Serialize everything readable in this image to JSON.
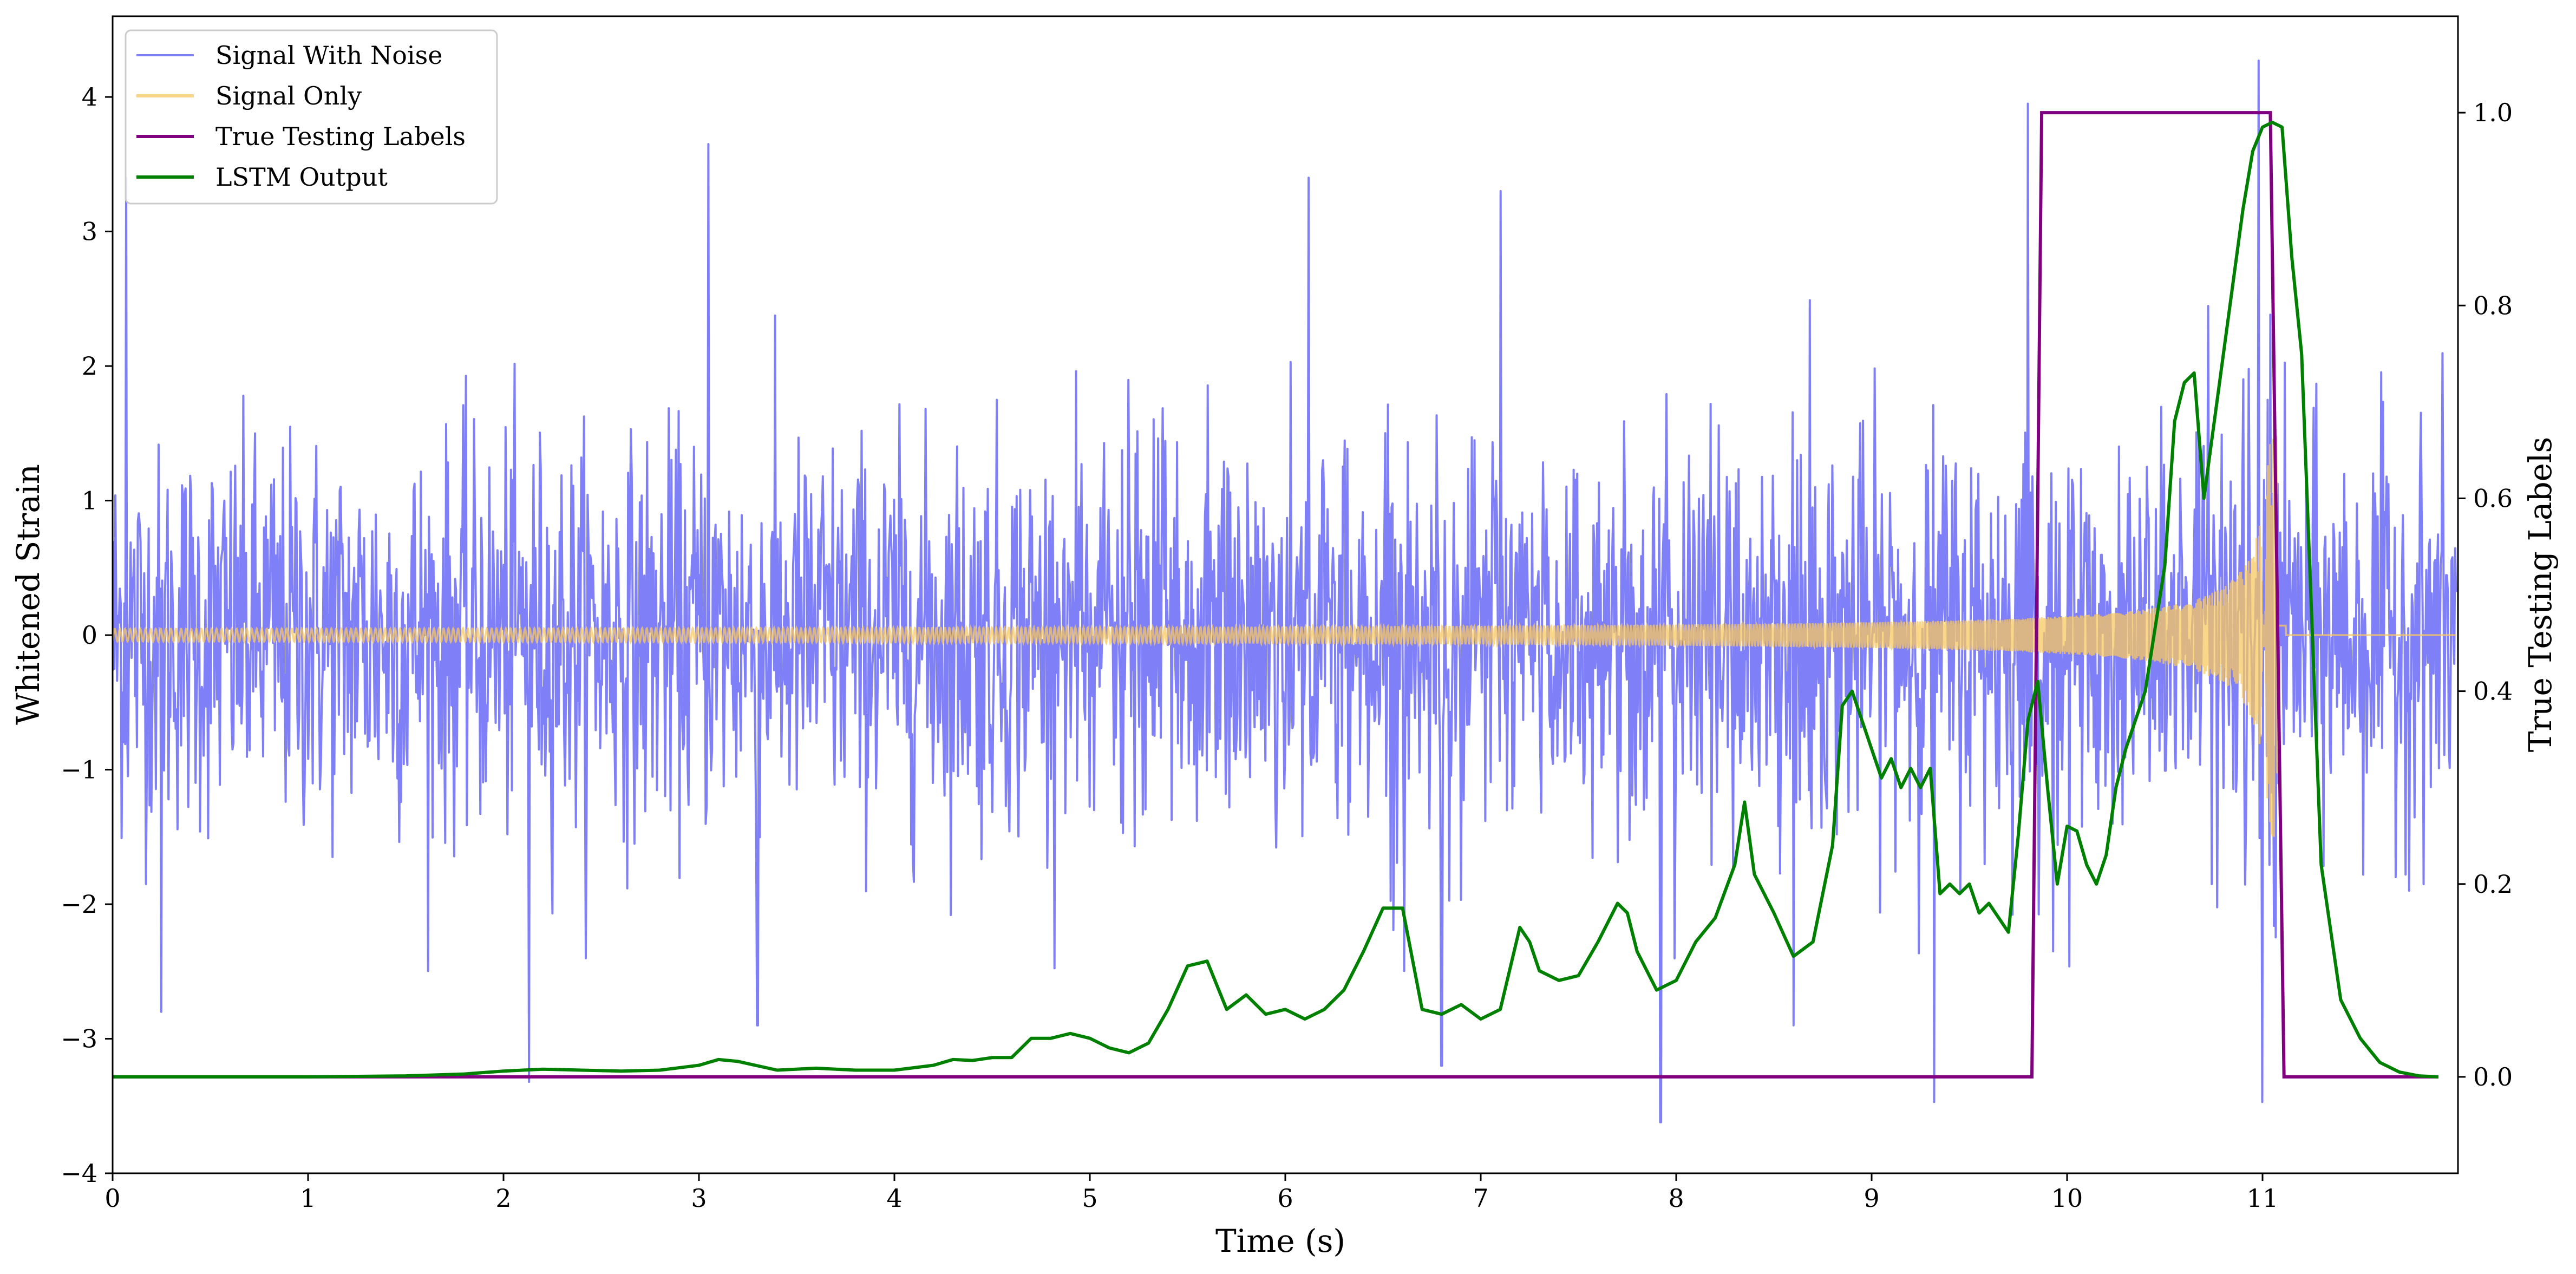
{
  "chart_data": {
    "type": "line",
    "title": "",
    "xlabel": "Time (s)",
    "ylabel": "Whitened Strain",
    "ylabel_right": "True Testing Labels",
    "xlim": [
      0,
      12
    ],
    "ylim": [
      -4,
      4.6
    ],
    "ylim_right": [
      -0.1,
      1.1
    ],
    "x_ticks": [
      0,
      1,
      2,
      3,
      4,
      5,
      6,
      7,
      8,
      9,
      10,
      11
    ],
    "x_tick_labels": [
      "0",
      "1",
      "2",
      "3",
      "4",
      "5",
      "6",
      "7",
      "8",
      "9",
      "10",
      "11"
    ],
    "y_ticks": [
      -4,
      -3,
      -2,
      -1,
      0,
      1,
      2,
      3,
      4
    ],
    "y_tick_labels": [
      "−4",
      "−3",
      "−2",
      "−1",
      "0",
      "1",
      "2",
      "3",
      "4"
    ],
    "y_right_ticks": [
      0.0,
      0.2,
      0.4,
      0.6,
      0.8,
      1.0
    ],
    "y_right_tick_labels": [
      "0.0",
      "0.2",
      "0.4",
      "0.6",
      "0.8",
      "1.0"
    ],
    "legend_position": "top-left",
    "grid": false,
    "series": [
      {
        "name": "Signal With Noise",
        "axis": "left",
        "color": "#7f7ff7",
        "description_values": {
          "noise_std": 0.72,
          "spikes": [
            [
              0.07,
              3.4
            ],
            [
              3.05,
              3.65
            ],
            [
              6.12,
              3.4
            ],
            [
              7.1,
              3.3
            ],
            [
              9.8,
              3.95
            ],
            [
              10.98,
              4.27
            ],
            [
              2.13,
              -3.32
            ],
            [
              7.92,
              -3.62
            ],
            [
              9.32,
              -3.47
            ],
            [
              11.0,
              -3.47
            ],
            [
              0.25,
              -2.8
            ],
            [
              3.3,
              -2.9
            ],
            [
              6.8,
              -3.2
            ],
            [
              8.6,
              -2.9
            ]
          ]
        }
      },
      {
        "name": "Signal Only",
        "axis": "left",
        "color": "#f8c860",
        "description_values": {
          "chirp_start_amplitude": 0.05,
          "chirp_peak_time": 11.08,
          "chirp_peak_amplitude": 1.5,
          "chirp_end": 11.12
        }
      },
      {
        "name": "True Testing Labels",
        "axis": "right",
        "color": "#800080",
        "x": [
          0,
          9.82,
          9.87,
          11.04,
          11.11,
          11.9
        ],
        "y": [
          0,
          0,
          1,
          1,
          0,
          0
        ]
      },
      {
        "name": "LSTM Output",
        "axis": "right",
        "color": "#008000",
        "x": [
          0,
          0.5,
          1.0,
          1.5,
          1.8,
          2.0,
          2.2,
          2.4,
          2.6,
          2.8,
          3.0,
          3.1,
          3.2,
          3.4,
          3.6,
          3.8,
          4.0,
          4.2,
          4.3,
          4.4,
          4.5,
          4.6,
          4.7,
          4.8,
          4.9,
          5.0,
          5.1,
          5.2,
          5.3,
          5.4,
          5.5,
          5.6,
          5.7,
          5.8,
          5.9,
          6.0,
          6.1,
          6.2,
          6.3,
          6.4,
          6.5,
          6.6,
          6.7,
          6.8,
          6.9,
          7.0,
          7.1,
          7.2,
          7.25,
          7.3,
          7.4,
          7.5,
          7.6,
          7.7,
          7.75,
          7.8,
          7.9,
          8.0,
          8.1,
          8.2,
          8.3,
          8.35,
          8.4,
          8.5,
          8.6,
          8.7,
          8.8,
          8.85,
          8.9,
          9.0,
          9.05,
          9.1,
          9.15,
          9.2,
          9.25,
          9.3,
          9.35,
          9.4,
          9.45,
          9.5,
          9.55,
          9.6,
          9.7,
          9.75,
          9.8,
          9.85,
          9.9,
          9.95,
          10.0,
          10.05,
          10.1,
          10.15,
          10.2,
          10.25,
          10.3,
          10.4,
          10.5,
          10.55,
          10.6,
          10.65,
          10.7,
          10.8,
          10.9,
          10.95,
          11.0,
          11.05,
          11.1,
          11.15,
          11.2,
          11.3,
          11.4,
          11.5,
          11.6,
          11.7,
          11.8,
          11.9
        ],
        "y": [
          0,
          0,
          0,
          0.001,
          0.003,
          0.006,
          0.008,
          0.007,
          0.006,
          0.007,
          0.012,
          0.018,
          0.016,
          0.007,
          0.009,
          0.007,
          0.007,
          0.012,
          0.018,
          0.017,
          0.02,
          0.02,
          0.04,
          0.04,
          0.045,
          0.04,
          0.03,
          0.025,
          0.035,
          0.07,
          0.115,
          0.12,
          0.07,
          0.085,
          0.065,
          0.07,
          0.06,
          0.07,
          0.09,
          0.13,
          0.175,
          0.175,
          0.07,
          0.065,
          0.075,
          0.06,
          0.07,
          0.155,
          0.14,
          0.11,
          0.1,
          0.105,
          0.14,
          0.18,
          0.17,
          0.13,
          0.09,
          0.1,
          0.14,
          0.165,
          0.22,
          0.285,
          0.21,
          0.17,
          0.125,
          0.14,
          0.24,
          0.385,
          0.4,
          0.34,
          0.31,
          0.33,
          0.3,
          0.32,
          0.3,
          0.32,
          0.19,
          0.2,
          0.19,
          0.2,
          0.17,
          0.18,
          0.15,
          0.25,
          0.37,
          0.41,
          0.3,
          0.2,
          0.26,
          0.255,
          0.22,
          0.2,
          0.23,
          0.3,
          0.34,
          0.4,
          0.53,
          0.68,
          0.72,
          0.73,
          0.6,
          0.75,
          0.9,
          0.96,
          0.985,
          0.99,
          0.985,
          0.85,
          0.75,
          0.22,
          0.08,
          0.04,
          0.015,
          0.005,
          0.001,
          0.0
        ]
      }
    ]
  }
}
